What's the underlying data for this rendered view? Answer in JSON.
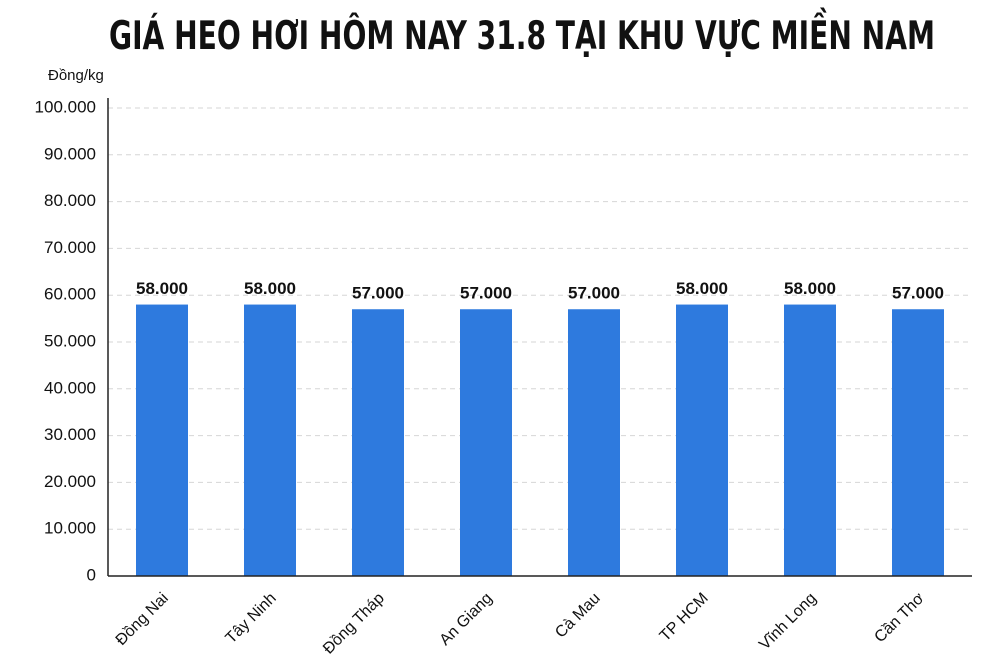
{
  "chart_data": {
    "type": "bar",
    "title": "GIÁ HEO HƠI HÔM NAY 31.8 TẠI KHU VỰC MIỀN NAM",
    "y_axis_label": "Đồng/kg",
    "categories": [
      "Đồng Nai",
      "Tây Ninh",
      "Đồng Tháp",
      "An Giang",
      "Cà Mau",
      "TP HCM",
      "Vĩnh Long",
      "Cần Thơ"
    ],
    "values": [
      58000,
      58000,
      57000,
      57000,
      57000,
      58000,
      58000,
      57000
    ],
    "value_labels": [
      "58.000",
      "58.000",
      "57.000",
      "57.000",
      "57.000",
      "58.000",
      "58.000",
      "57.000"
    ],
    "color": "#2e7ade",
    "ylim": [
      0,
      100000
    ],
    "yticks": [
      0,
      {
        "value": 10000,
        "label": "10.000"
      },
      {
        "value": 20000,
        "label": "20.000"
      },
      {
        "value": 30000,
        "label": "30.000"
      },
      {
        "value": 40000,
        "label": "40.000"
      },
      {
        "value": 50000,
        "label": "50.000"
      },
      {
        "value": 60000,
        "label": "60.000"
      },
      {
        "value": 70000,
        "label": "70.000"
      },
      {
        "value": 80000,
        "label": "80.000"
      },
      {
        "value": 90000,
        "label": "90.000"
      },
      {
        "value": 100000,
        "label": "100.000"
      }
    ],
    "grid": true
  }
}
